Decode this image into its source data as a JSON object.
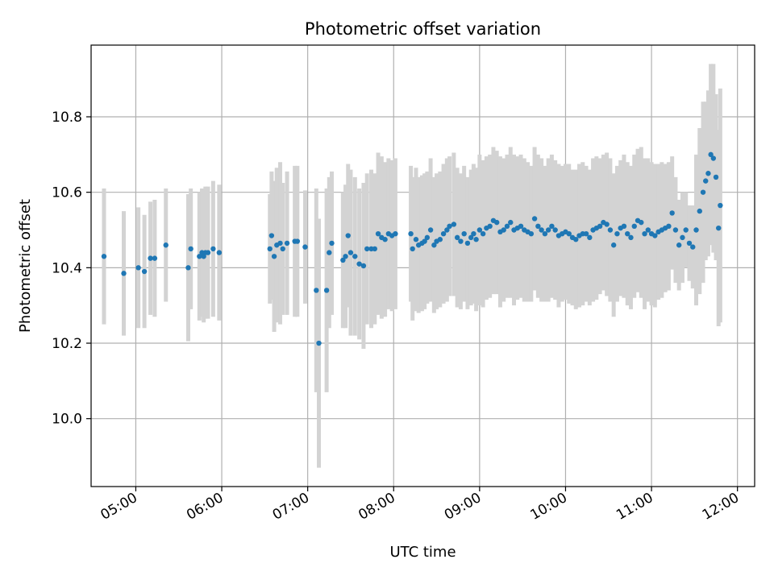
{
  "chart_data": {
    "type": "scatter",
    "title": "Photometric offset variation",
    "xlabel": "UTC time",
    "ylabel": "Photometric offset",
    "x_tick_labels": [
      "05:00",
      "06:00",
      "07:00",
      "08:00",
      "09:00",
      "10:00",
      "11:00",
      "12:00"
    ],
    "y_tick_labels": [
      "10.0",
      "10.2",
      "10.4",
      "10.6",
      "10.8"
    ],
    "x_ticks_hours": [
      5,
      6,
      7,
      8,
      9,
      10,
      11,
      12
    ],
    "y_ticks": [
      10.0,
      10.2,
      10.4,
      10.6,
      10.8
    ],
    "xlim_hours": [
      4.48,
      12.2
    ],
    "ylim": [
      9.82,
      10.99
    ],
    "grid": true,
    "legend": "none",
    "colors": {
      "points": "#1f77b4",
      "error_bars": "#d3d3d3",
      "grid": "#b0b0b0"
    },
    "series": [
      {
        "x_hours": [
          4.63,
          4.86,
          5.03,
          5.1,
          5.17,
          5.22,
          5.35,
          5.61,
          5.64,
          5.74,
          5.77,
          5.79,
          5.81,
          5.84,
          5.9,
          5.97,
          6.56,
          6.58,
          6.61,
          6.64,
          6.68,
          6.71,
          6.76,
          6.85,
          6.88,
          6.97,
          7.1,
          7.13,
          7.22,
          7.25,
          7.28,
          7.41,
          7.44,
          7.47,
          7.5,
          7.55,
          7.6,
          7.65,
          7.69,
          7.74,
          7.78,
          7.82,
          7.86,
          7.9,
          7.94,
          7.98,
          8.02,
          8.2,
          8.22,
          8.26,
          8.29,
          8.33,
          8.36,
          8.39,
          8.43,
          8.47,
          8.5,
          8.54,
          8.58,
          8.62,
          8.65,
          8.7,
          8.74,
          8.78,
          8.82,
          8.86,
          8.9,
          8.93,
          8.96,
          9.0,
          9.04,
          9.08,
          9.12,
          9.16,
          9.2,
          9.24,
          9.28,
          9.32,
          9.36,
          9.4,
          9.44,
          9.48,
          9.52,
          9.56,
          9.6,
          9.64,
          9.68,
          9.72,
          9.76,
          9.8,
          9.84,
          9.88,
          9.92,
          9.96,
          10.0,
          10.04,
          10.08,
          10.12,
          10.16,
          10.2,
          10.24,
          10.28,
          10.32,
          10.36,
          10.4,
          10.44,
          10.48,
          10.52,
          10.56,
          10.6,
          10.64,
          10.68,
          10.72,
          10.76,
          10.8,
          10.84,
          10.88,
          10.92,
          10.96,
          11.0,
          11.04,
          11.08,
          11.12,
          11.16,
          11.2,
          11.24,
          11.28,
          11.32,
          11.36,
          11.4,
          11.44,
          11.48,
          11.52,
          11.56,
          11.6,
          11.63,
          11.66,
          11.69,
          11.72,
          11.75,
          11.78,
          11.8
        ],
        "y": [
          10.43,
          10.385,
          10.4,
          10.39,
          10.425,
          10.425,
          10.46,
          10.4,
          10.45,
          10.43,
          10.44,
          10.43,
          10.44,
          10.44,
          10.45,
          10.44,
          10.45,
          10.485,
          10.43,
          10.46,
          10.465,
          10.45,
          10.465,
          10.47,
          10.47,
          10.455,
          10.34,
          10.2,
          10.34,
          10.44,
          10.465,
          10.42,
          10.43,
          10.485,
          10.44,
          10.43,
          10.41,
          10.405,
          10.45,
          10.45,
          10.45,
          10.49,
          10.48,
          10.475,
          10.49,
          10.485,
          10.49,
          10.49,
          10.45,
          10.475,
          10.46,
          10.465,
          10.47,
          10.48,
          10.5,
          10.46,
          10.47,
          10.475,
          10.49,
          10.5,
          10.51,
          10.515,
          10.48,
          10.47,
          10.49,
          10.465,
          10.48,
          10.49,
          10.475,
          10.5,
          10.49,
          10.505,
          10.51,
          10.525,
          10.52,
          10.495,
          10.5,
          10.51,
          10.52,
          10.5,
          10.505,
          10.51,
          10.5,
          10.495,
          10.49,
          10.53,
          10.51,
          10.5,
          10.49,
          10.5,
          10.51,
          10.5,
          10.485,
          10.49,
          10.495,
          10.49,
          10.48,
          10.475,
          10.485,
          10.49,
          10.49,
          10.48,
          10.5,
          10.505,
          10.51,
          10.52,
          10.515,
          10.5,
          10.46,
          10.49,
          10.505,
          10.51,
          10.49,
          10.48,
          10.51,
          10.525,
          10.52,
          10.49,
          10.5,
          10.49,
          10.485,
          10.495,
          10.5,
          10.505,
          10.51,
          10.545,
          10.5,
          10.46,
          10.48,
          10.5,
          10.465,
          10.455,
          10.5,
          10.55,
          10.6,
          10.63,
          10.65,
          10.7,
          10.69,
          10.64,
          10.505,
          10.565
        ],
        "y_err": [
          0.18,
          0.165,
          0.16,
          0.15,
          0.15,
          0.155,
          0.15,
          0.195,
          0.16,
          0.17,
          0.17,
          0.175,
          0.175,
          0.175,
          0.18,
          0.18,
          0.145,
          0.17,
          0.2,
          0.205,
          0.215,
          0.175,
          0.19,
          0.2,
          0.2,
          0.15,
          0.27,
          0.33,
          0.27,
          0.2,
          0.19,
          0.18,
          0.19,
          0.19,
          0.22,
          0.21,
          0.2,
          0.22,
          0.2,
          0.21,
          0.2,
          0.215,
          0.215,
          0.205,
          0.2,
          0.2,
          0.2,
          0.18,
          0.19,
          0.19,
          0.18,
          0.18,
          0.18,
          0.175,
          0.19,
          0.18,
          0.18,
          0.18,
          0.185,
          0.19,
          0.185,
          0.19,
          0.185,
          0.18,
          0.18,
          0.175,
          0.18,
          0.185,
          0.19,
          0.2,
          0.195,
          0.19,
          0.19,
          0.195,
          0.19,
          0.2,
          0.19,
          0.19,
          0.2,
          0.2,
          0.19,
          0.19,
          0.19,
          0.185,
          0.18,
          0.19,
          0.19,
          0.19,
          0.18,
          0.19,
          0.19,
          0.185,
          0.19,
          0.18,
          0.18,
          0.185,
          0.18,
          0.185,
          0.19,
          0.19,
          0.18,
          0.18,
          0.19,
          0.19,
          0.18,
          0.18,
          0.19,
          0.19,
          0.19,
          0.18,
          0.18,
          0.19,
          0.19,
          0.19,
          0.19,
          0.19,
          0.2,
          0.2,
          0.19,
          0.19,
          0.19,
          0.18,
          0.18,
          0.17,
          0.17,
          0.15,
          0.14,
          0.12,
          0.12,
          0.1,
          0.1,
          0.11,
          0.2,
          0.22,
          0.24,
          0.21,
          0.22,
          0.24,
          0.25,
          0.22,
          0.26,
          0.31
        ]
      }
    ]
  }
}
